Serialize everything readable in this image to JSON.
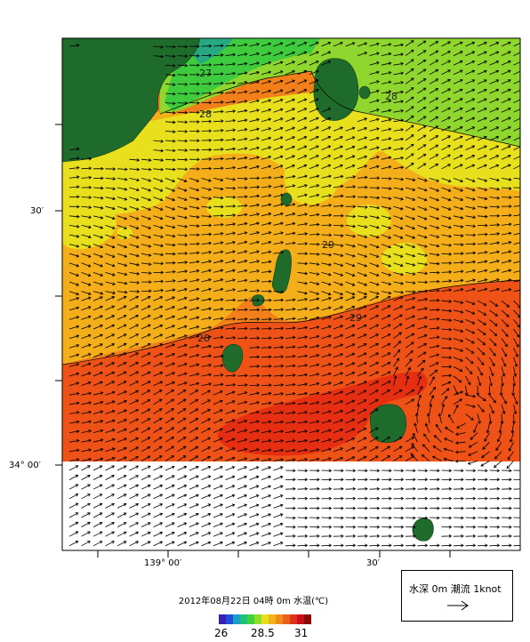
{
  "caption": "2012年08月22日 04時 0m 水温(℃)",
  "legend": {
    "text": "水深 0m 潮流 1knot",
    "arrow_icon": "arrow-right-icon"
  },
  "color_scale": {
    "colors": [
      "#3a1fb5",
      "#1f4fd8",
      "#1aa0c8",
      "#1ec07a",
      "#3fd23a",
      "#8fdc2a",
      "#e6e01e",
      "#f2b21c",
      "#f08a1a",
      "#e8601a",
      "#e0301a",
      "#c8101a",
      "#8a0a0a"
    ],
    "ticks": [
      "26",
      "28.5",
      "31"
    ]
  },
  "axes": {
    "y_ticks": [
      "30′",
      "34° 00′"
    ],
    "x_ticks": [
      "139° 00′",
      "30′"
    ]
  },
  "contour_labels": [
    "27",
    "28",
    "28",
    "29",
    "29",
    "28"
  ],
  "colors": {
    "land": "#1e6b2c",
    "t26_5": "#27a882",
    "t27": "#3ecb3e",
    "t27_5": "#8fd62e",
    "t28": "#e8e01c",
    "t28_5": "#f4ae1a",
    "t29": "#f27f1a",
    "t29_5": "#ee5216",
    "t30": "#e62e12",
    "no_data": "#ffffff"
  }
}
